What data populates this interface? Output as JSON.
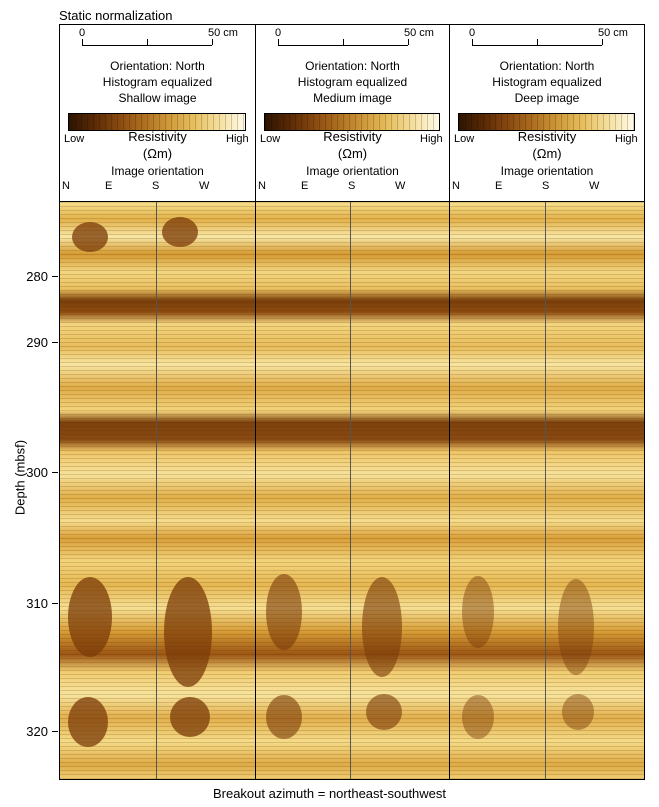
{
  "title": "Static normalization",
  "y_axis": {
    "label": "Depth (mbsf)",
    "ticks": [
      "280",
      "290",
      "300",
      "310",
      "320"
    ]
  },
  "footer": "Breakout azimuth = northeast-southwest",
  "panels": [
    {
      "scale_start": "0",
      "scale_end": "50 cm",
      "orientation": "Orientation: North",
      "equalization": "Histogram equalized",
      "image_type": "Shallow image",
      "low": "Low",
      "high": "High",
      "resistivity": "Resistivity",
      "unit": "(Ωm)",
      "image_orientation": "Image orientation",
      "dirs": [
        "N",
        "E",
        "S",
        "W"
      ]
    },
    {
      "scale_start": "0",
      "scale_end": "50 cm",
      "orientation": "Orientation: North",
      "equalization": "Histogram equalized",
      "image_type": "Medium image",
      "low": "Low",
      "high": "High",
      "resistivity": "Resistivity",
      "unit": "(Ωm)",
      "image_orientation": "Image orientation",
      "dirs": [
        "N",
        "E",
        "S",
        "W"
      ]
    },
    {
      "scale_start": "0",
      "scale_end": "50 cm",
      "orientation": "Orientation: North",
      "equalization": "Histogram equalized",
      "image_type": "Deep image",
      "low": "Low",
      "high": "High",
      "resistivity": "Resistivity",
      "unit": "(Ωm)",
      "image_orientation": "Image orientation",
      "dirs": [
        "N",
        "E",
        "S",
        "W"
      ]
    }
  ]
}
